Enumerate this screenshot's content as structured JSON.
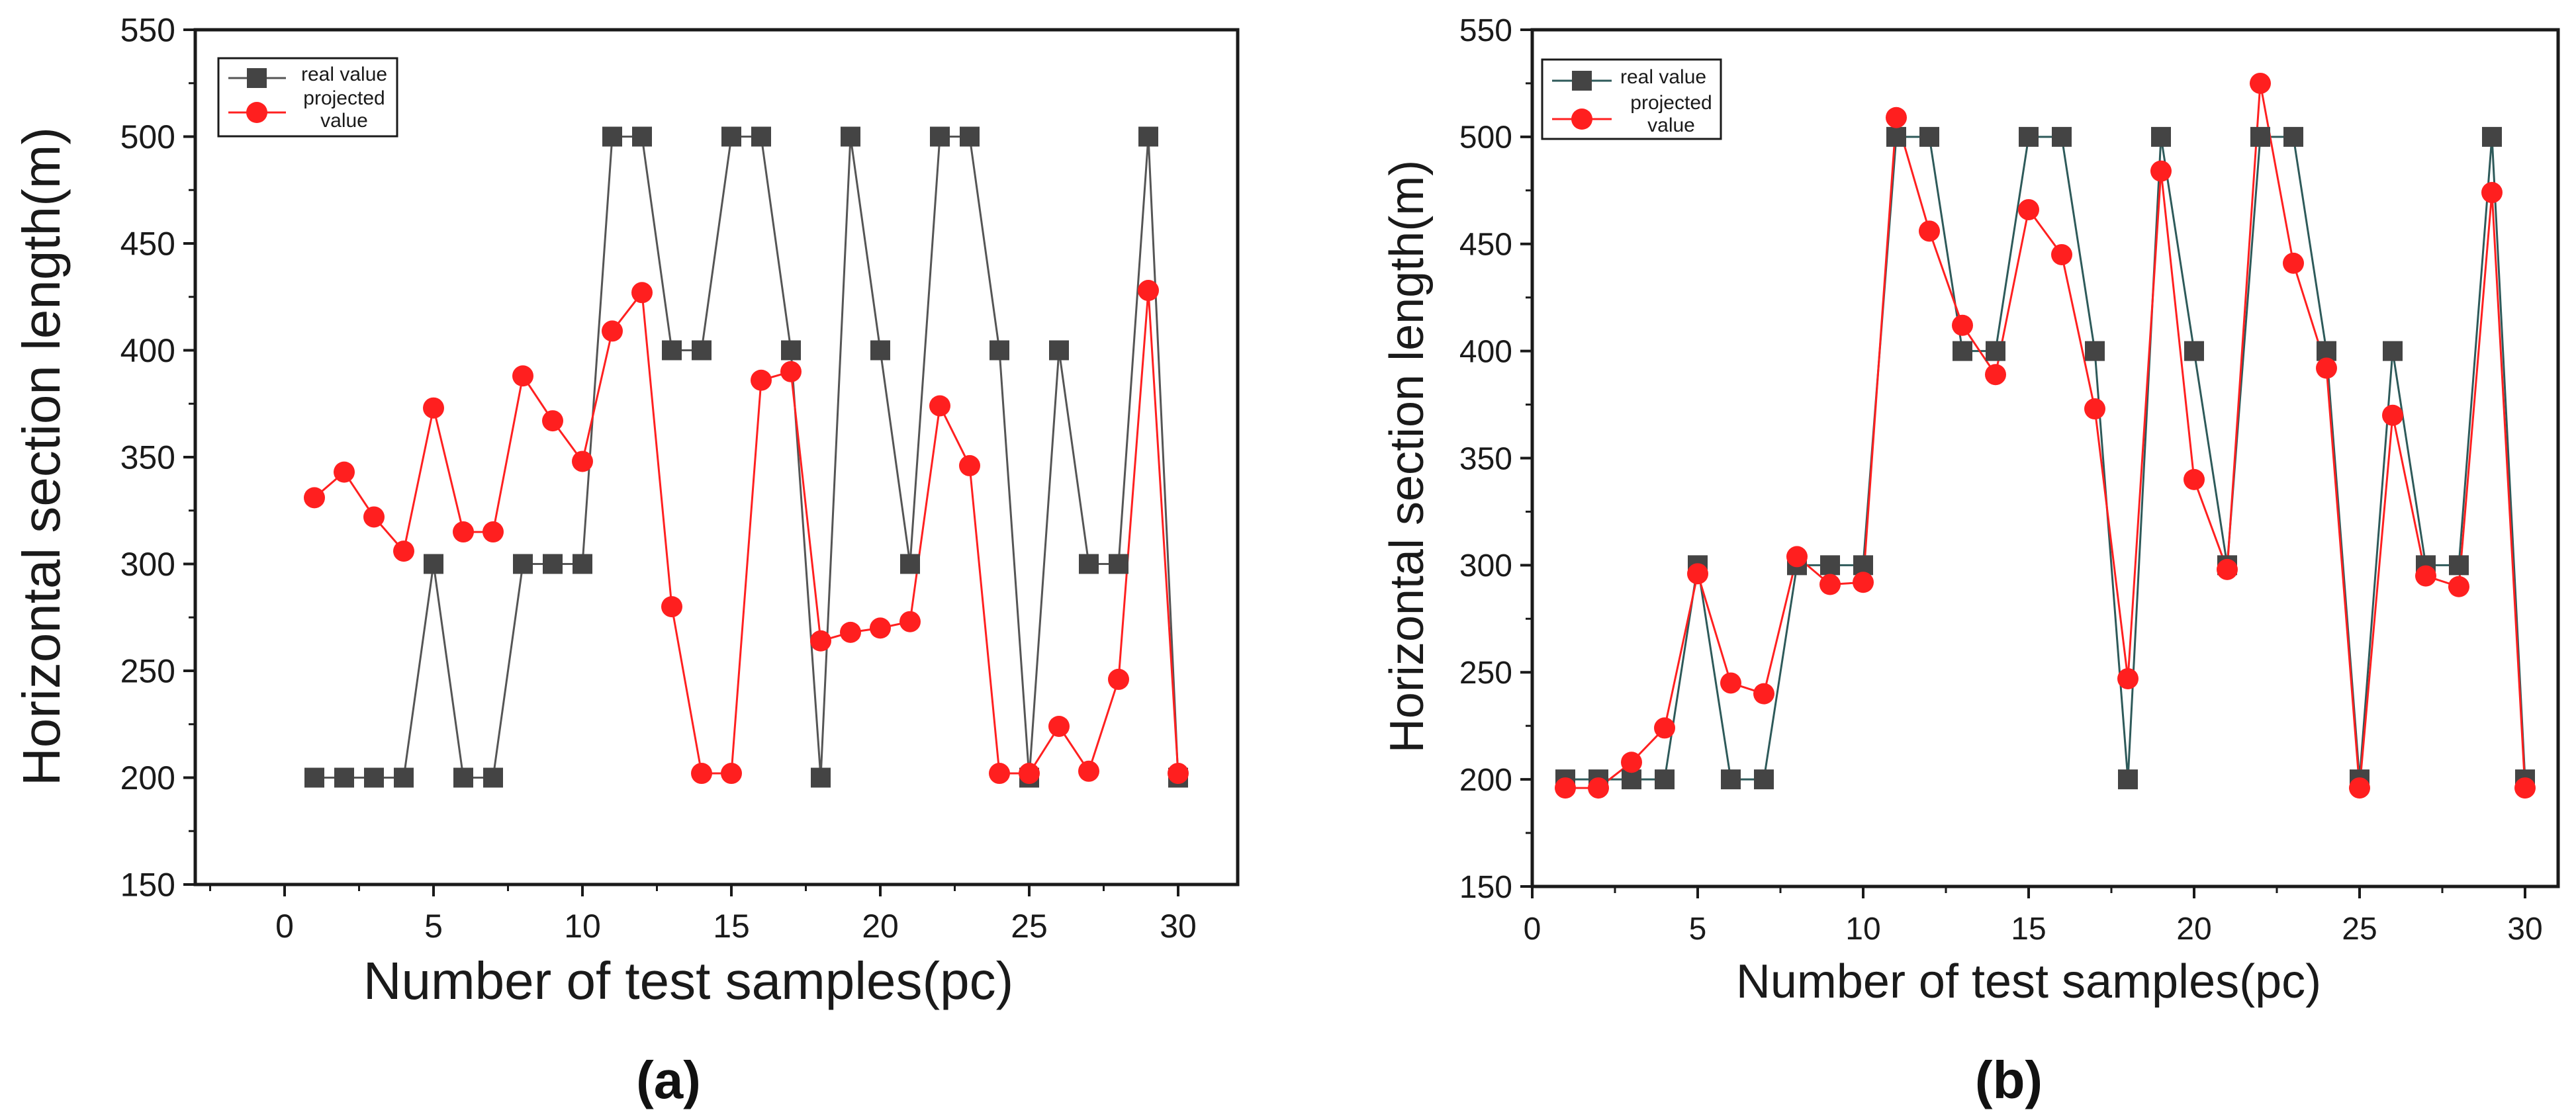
{
  "chart_data": [
    {
      "id": "a",
      "type": "line",
      "caption": "(a)",
      "xlabel": "Number of test samples(pc)",
      "ylabel": "Horizontal section length(m)",
      "xlim": [
        -3,
        32
      ],
      "ylim": [
        150,
        550
      ],
      "xticks": [
        0,
        5,
        10,
        15,
        20,
        25,
        30
      ],
      "yticks": [
        150,
        200,
        250,
        300,
        350,
        400,
        450,
        500,
        550
      ],
      "legend": "top-left",
      "x": [
        1,
        2,
        3,
        4,
        5,
        6,
        7,
        8,
        9,
        10,
        11,
        12,
        13,
        14,
        15,
        16,
        17,
        18,
        19,
        20,
        21,
        22,
        23,
        24,
        25,
        26,
        27,
        28,
        29,
        30
      ],
      "series": [
        {
          "name": "real value",
          "marker": "square",
          "color": "#444444",
          "line_color": "#555555",
          "values": [
            200,
            200,
            200,
            200,
            300,
            200,
            200,
            300,
            300,
            300,
            500,
            500,
            400,
            400,
            500,
            500,
            400,
            200,
            500,
            400,
            300,
            500,
            500,
            400,
            200,
            400,
            300,
            300,
            500,
            200
          ]
        },
        {
          "name": "projected value",
          "marker": "circle",
          "color": "#ff1f1f",
          "line_color": "#ff2020",
          "values": [
            331,
            343,
            322,
            306,
            373,
            315,
            315,
            388,
            367,
            348,
            409,
            427,
            280,
            202,
            202,
            386,
            390,
            264,
            268,
            270,
            273,
            374,
            346,
            202,
            202,
            224,
            203,
            246,
            428,
            202
          ]
        }
      ]
    },
    {
      "id": "b",
      "type": "line",
      "caption": "(b)",
      "xlabel": "Number of test samples(pc)",
      "ylabel": "Horizontal section length(m)",
      "xlim": [
        0,
        31
      ],
      "ylim": [
        150,
        550
      ],
      "xticks": [
        0,
        5,
        10,
        15,
        20,
        25,
        30
      ],
      "yticks": [
        150,
        200,
        250,
        300,
        350,
        400,
        450,
        500,
        550
      ],
      "legend": "top-left",
      "x": [
        1,
        2,
        3,
        4,
        5,
        6,
        7,
        8,
        9,
        10,
        11,
        12,
        13,
        14,
        15,
        16,
        17,
        18,
        19,
        20,
        21,
        22,
        23,
        24,
        25,
        26,
        27,
        28,
        29,
        30
      ],
      "series": [
        {
          "name": "real value",
          "marker": "square",
          "color": "#444444",
          "line_color": "#2e5a5a",
          "values": [
            200,
            200,
            200,
            200,
            300,
            200,
            200,
            300,
            300,
            300,
            500,
            500,
            400,
            400,
            500,
            500,
            400,
            200,
            500,
            400,
            300,
            500,
            500,
            400,
            200,
            400,
            300,
            300,
            500,
            200
          ]
        },
        {
          "name": "projected value",
          "marker": "circle",
          "color": "#ff1f1f",
          "line_color": "#ff2020",
          "values": [
            196,
            196,
            208,
            224,
            296,
            245,
            240,
            304,
            291,
            292,
            509,
            456,
            412,
            389,
            466,
            445,
            373,
            247,
            484,
            340,
            298,
            525,
            441,
            392,
            196,
            370,
            295,
            290,
            474,
            196
          ]
        }
      ]
    }
  ]
}
